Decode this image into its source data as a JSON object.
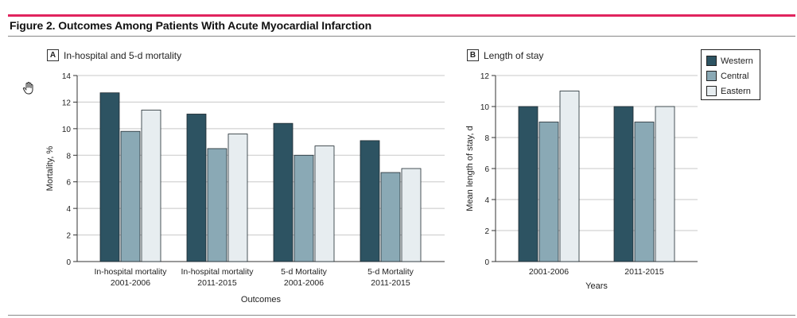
{
  "figure": {
    "title": "Figure 2. Outcomes Among Patients With Acute Myocardial Infarction"
  },
  "colors": {
    "accent_rule": "#e0245e",
    "western": "#2d5362",
    "central": "#8aa9b5",
    "eastern": "#e7edf0",
    "bar_stroke": "#1f2a30",
    "grid": "#c8c8c8"
  },
  "legend": {
    "items": [
      {
        "label": "Western",
        "color_key": "western"
      },
      {
        "label": "Central",
        "color_key": "central"
      },
      {
        "label": "Eastern",
        "color_key": "eastern"
      }
    ]
  },
  "panels": {
    "a": {
      "letter": "A",
      "title": "In-hospital and 5-d mortality"
    },
    "b": {
      "letter": "B",
      "title": "Length of stay"
    }
  },
  "icons": {
    "cursor": "hand-pointer-icon"
  },
  "chart_data": [
    {
      "type": "bar",
      "panel": "A",
      "title": "In-hospital and 5-d mortality",
      "categories": [
        [
          "In-hospital mortality",
          "2001-2006"
        ],
        [
          "In-hospital mortality",
          "2011-2015"
        ],
        [
          "5-d Mortality",
          "2001-2006"
        ],
        [
          "5-d Mortality",
          "2011-2015"
        ]
      ],
      "series": [
        {
          "name": "Western",
          "values": [
            12.7,
            11.1,
            10.4,
            9.1
          ]
        },
        {
          "name": "Central",
          "values": [
            9.8,
            8.5,
            8.0,
            6.7
          ]
        },
        {
          "name": "Eastern",
          "values": [
            11.4,
            9.6,
            8.7,
            7.0
          ]
        }
      ],
      "xlabel": "Outcomes",
      "ylabel": "Mortality, %",
      "ylim": [
        0,
        14
      ],
      "yticks": [
        0,
        2,
        4,
        6,
        8,
        10,
        12,
        14
      ],
      "grid": true
    },
    {
      "type": "bar",
      "panel": "B",
      "title": "Length of stay",
      "categories": [
        [
          "2001-2006"
        ],
        [
          "2011-2015"
        ]
      ],
      "series": [
        {
          "name": "Western",
          "values": [
            10,
            10
          ]
        },
        {
          "name": "Central",
          "values": [
            9,
            9
          ]
        },
        {
          "name": "Eastern",
          "values": [
            11,
            10
          ]
        }
      ],
      "xlabel": "Years",
      "ylabel": "Mean length of stay, d",
      "ylim": [
        0,
        12
      ],
      "yticks": [
        0,
        2,
        4,
        6,
        8,
        10,
        12
      ],
      "grid": true,
      "legend": "top-right"
    }
  ]
}
